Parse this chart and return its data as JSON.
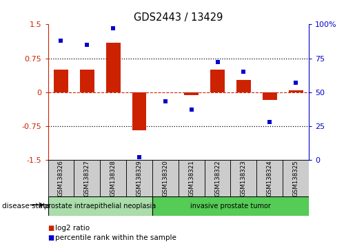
{
  "title": "GDS2443 / 13429",
  "samples": [
    "GSM138326",
    "GSM138327",
    "GSM138328",
    "GSM138329",
    "GSM138320",
    "GSM138321",
    "GSM138322",
    "GSM138323",
    "GSM138324",
    "GSM138325"
  ],
  "log2_ratio": [
    0.5,
    0.5,
    1.1,
    -0.85,
    0.0,
    -0.07,
    0.5,
    0.27,
    -0.18,
    0.04
  ],
  "percentile_rank": [
    88,
    85,
    97,
    2,
    43,
    37,
    72,
    65,
    28,
    57
  ],
  "groups": [
    {
      "label": "prostate intraepithelial neoplasia",
      "start": 0,
      "end": 3,
      "color": "#aaddaa"
    },
    {
      "label": "invasive prostate tumor",
      "start": 4,
      "end": 9,
      "color": "#55cc55"
    }
  ],
  "bar_color": "#cc2200",
  "dot_color": "#0000cc",
  "ylim_left": [
    -1.5,
    1.5
  ],
  "ylim_right": [
    0,
    100
  ],
  "yticks_left": [
    -1.5,
    -0.75,
    0,
    0.75,
    1.5
  ],
  "yticks_right": [
    0,
    25,
    50,
    75,
    100
  ],
  "hline_color": "#cc2200",
  "dotted_color": "black",
  "legend_log2": "log2 ratio",
  "legend_pct": "percentile rank within the sample",
  "disease_state_label": "disease state",
  "bg_color": "white",
  "label_box_color": "#cccccc",
  "border_color": "black"
}
